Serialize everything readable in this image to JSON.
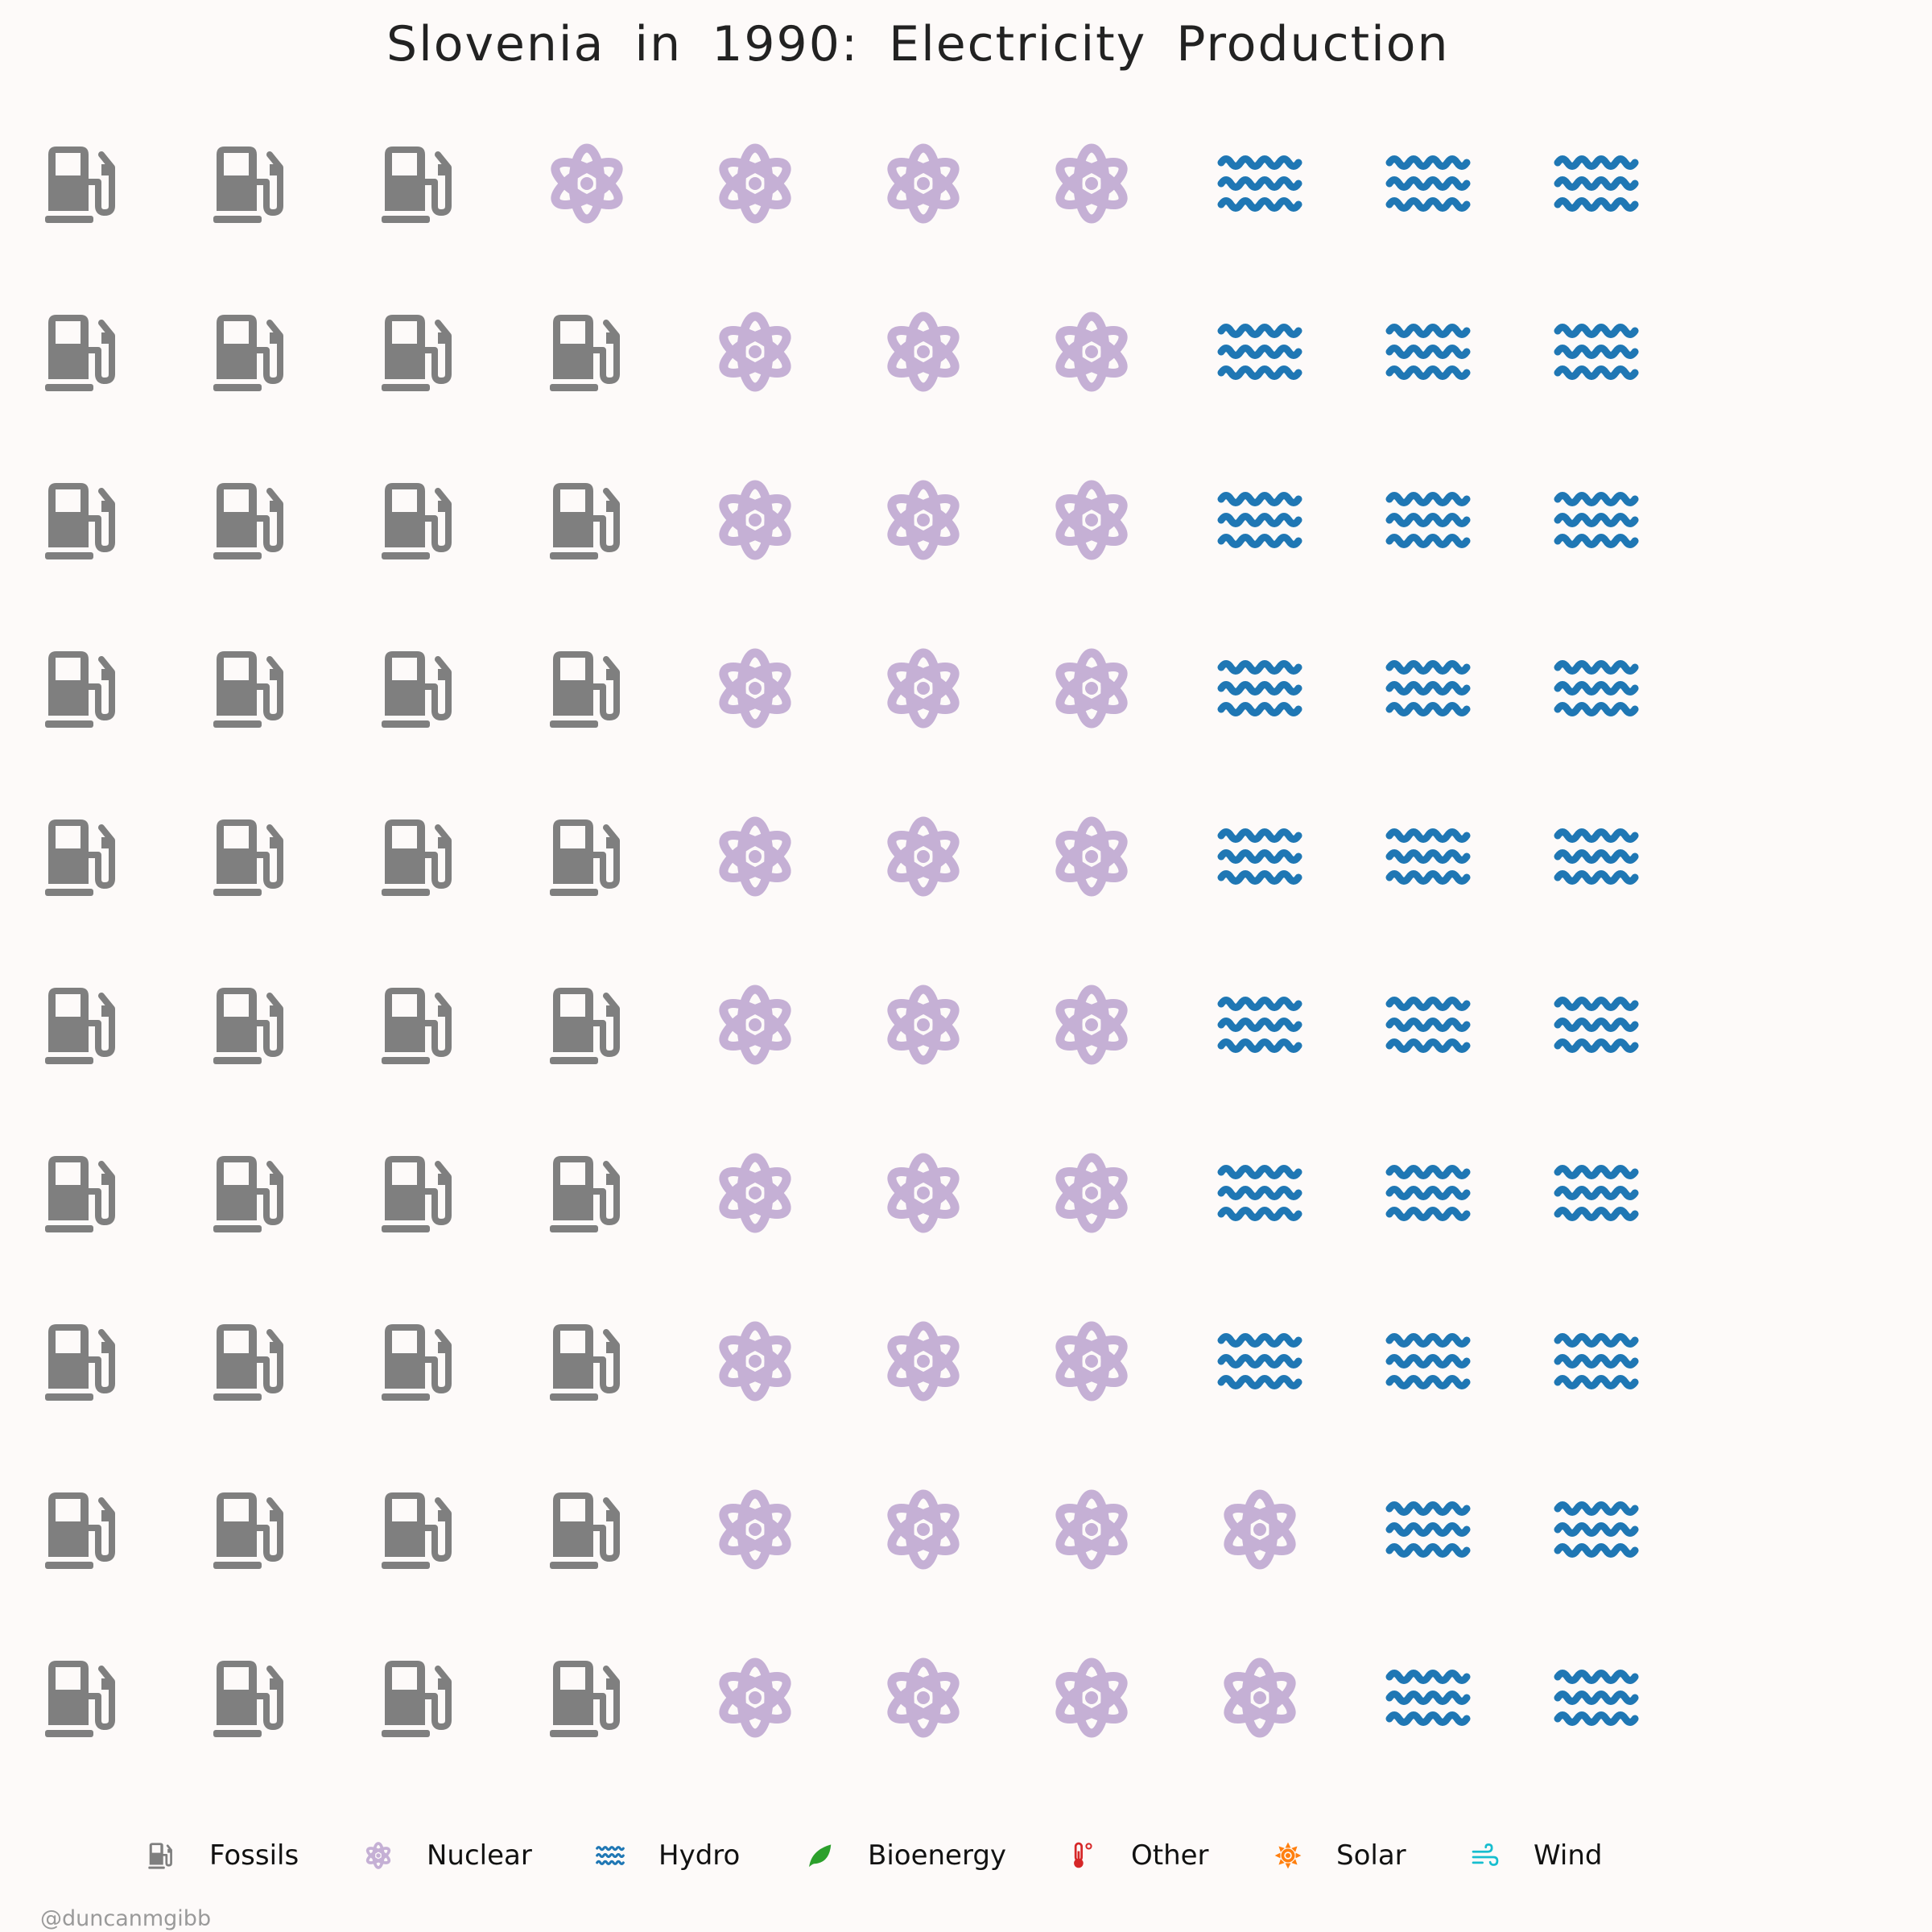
{
  "chart_data": {
    "type": "waffle",
    "title": "Slovenia  in  1990:  Electricity  Production",
    "grid": {
      "rows": 10,
      "cols": 10,
      "fill_order": "column-major"
    },
    "series": [
      {
        "name": "Fossils",
        "units": 39,
        "color": "#7F7F7F",
        "icon": "fuel-pump-icon"
      },
      {
        "name": "Nuclear",
        "units": 33,
        "color": "#C5B0D5",
        "icon": "atom-icon"
      },
      {
        "name": "Hydro",
        "units": 28,
        "color": "#1F77B4",
        "icon": "water-waves-icon"
      },
      {
        "name": "Bioenergy",
        "units": 0,
        "color": "#2CA02C",
        "icon": "leaf-icon"
      },
      {
        "name": "Other",
        "units": 0,
        "color": "#D62728",
        "icon": "thermometer-icon"
      },
      {
        "name": "Solar",
        "units": 0,
        "color": "#FF7F0E",
        "icon": "sun-icon"
      },
      {
        "name": "Wind",
        "units": 0,
        "color": "#17BECF",
        "icon": "wind-icon"
      }
    ],
    "legend_position": "bottom"
  },
  "credit": "@duncanmgibb"
}
